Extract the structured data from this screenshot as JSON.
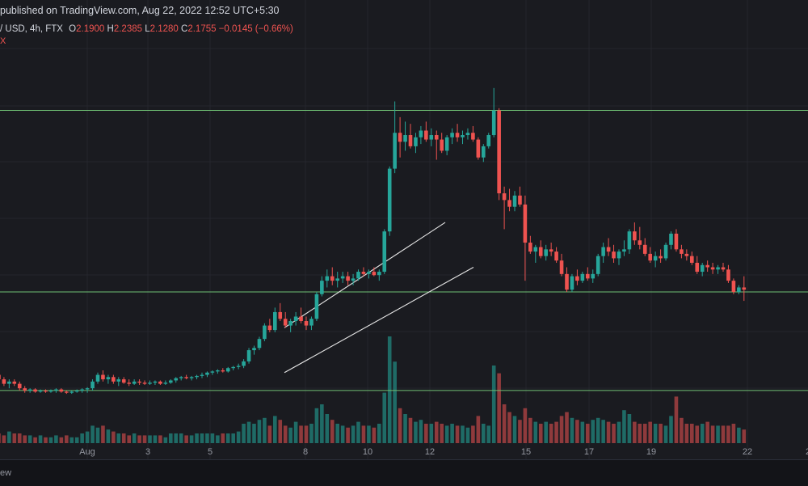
{
  "header": {
    "publish_line": "published on TradingView.com, Aug 22, 2022 12:52 UTC+5:30",
    "symbol_line": "/ USD, 4h, FTX",
    "open_label": "O",
    "open_value": "2.1900",
    "high_label": "H",
    "high_value": "2.2385",
    "low_label": "L",
    "low_value": "2.1280",
    "close_label": "C",
    "close_value": "2.1755",
    "change": "−0.0145 (−0.66%)",
    "row3": "X"
  },
  "footer": {
    "text": "ew"
  },
  "colors": {
    "background": "#1a1b20",
    "up": "#26a69a",
    "down": "#ef5350",
    "up_volume": "#1f6b66",
    "down_volume": "#8f3a3c",
    "level_line": "#6fbf73",
    "channel": "#e6e6e6",
    "grid": "#24262d",
    "tick_text": "#9598a1"
  },
  "chart_data": {
    "type": "candlestick",
    "title": "/ USD, 4h, FTX",
    "x_ticks": [
      "Aug",
      "3",
      "5",
      "8",
      "10",
      "12",
      "15",
      "17",
      "19",
      "22",
      "2"
    ],
    "horizontal_levels": [
      2.98,
      2.17,
      1.73
    ],
    "trend_channel": {
      "upper": [
        [
          "Aug 7",
          2.01
        ],
        [
          "Aug 12",
          2.48
        ]
      ],
      "lower": [
        [
          "Aug 7",
          1.81
        ],
        [
          "Aug 13",
          2.28
        ]
      ]
    },
    "ohlc": [
      [
        1.79,
        1.82,
        1.76,
        1.8
      ],
      [
        1.8,
        1.82,
        1.77,
        1.78
      ],
      [
        1.78,
        1.79,
        1.75,
        1.76
      ],
      [
        1.76,
        1.78,
        1.74,
        1.77
      ],
      [
        1.77,
        1.78,
        1.75,
        1.76
      ],
      [
        1.76,
        1.77,
        1.73,
        1.74
      ],
      [
        1.74,
        1.75,
        1.72,
        1.73
      ],
      [
        1.73,
        1.74,
        1.72,
        1.735
      ],
      [
        1.735,
        1.74,
        1.72,
        1.725
      ],
      [
        1.725,
        1.735,
        1.72,
        1.73
      ],
      [
        1.73,
        1.735,
        1.72,
        1.725
      ],
      [
        1.725,
        1.735,
        1.72,
        1.73
      ],
      [
        1.73,
        1.74,
        1.72,
        1.735
      ],
      [
        1.735,
        1.74,
        1.72,
        1.725
      ],
      [
        1.725,
        1.73,
        1.715,
        1.72
      ],
      [
        1.72,
        1.73,
        1.715,
        1.725
      ],
      [
        1.725,
        1.735,
        1.72,
        1.73
      ],
      [
        1.73,
        1.74,
        1.72,
        1.735
      ],
      [
        1.735,
        1.745,
        1.72,
        1.74
      ],
      [
        1.74,
        1.78,
        1.73,
        1.77
      ],
      [
        1.77,
        1.81,
        1.76,
        1.8
      ],
      [
        1.8,
        1.82,
        1.77,
        1.78
      ],
      [
        1.78,
        1.8,
        1.76,
        1.79
      ],
      [
        1.79,
        1.8,
        1.76,
        1.77
      ],
      [
        1.77,
        1.79,
        1.75,
        1.78
      ],
      [
        1.78,
        1.79,
        1.76,
        1.765
      ],
      [
        1.765,
        1.78,
        1.75,
        1.76
      ],
      [
        1.76,
        1.78,
        1.755,
        1.77
      ],
      [
        1.77,
        1.78,
        1.755,
        1.765
      ],
      [
        1.765,
        1.775,
        1.755,
        1.76
      ],
      [
        1.76,
        1.775,
        1.755,
        1.765
      ],
      [
        1.765,
        1.775,
        1.755,
        1.77
      ],
      [
        1.77,
        1.775,
        1.755,
        1.76
      ],
      [
        1.76,
        1.775,
        1.755,
        1.765
      ],
      [
        1.765,
        1.78,
        1.76,
        1.775
      ],
      [
        1.775,
        1.79,
        1.765,
        1.785
      ],
      [
        1.785,
        1.795,
        1.775,
        1.79
      ],
      [
        1.79,
        1.8,
        1.78,
        1.785
      ],
      [
        1.785,
        1.795,
        1.775,
        1.79
      ],
      [
        1.79,
        1.8,
        1.78,
        1.795
      ],
      [
        1.795,
        1.81,
        1.785,
        1.8
      ],
      [
        1.8,
        1.815,
        1.79,
        1.81
      ],
      [
        1.81,
        1.82,
        1.8,
        1.815
      ],
      [
        1.815,
        1.825,
        1.805,
        1.82
      ],
      [
        1.82,
        1.83,
        1.81,
        1.815
      ],
      [
        1.815,
        1.835,
        1.81,
        1.83
      ],
      [
        1.83,
        1.84,
        1.82,
        1.835
      ],
      [
        1.835,
        1.85,
        1.825,
        1.84
      ],
      [
        1.84,
        1.87,
        1.83,
        1.86
      ],
      [
        1.86,
        1.92,
        1.85,
        1.91
      ],
      [
        1.91,
        1.93,
        1.89,
        1.92
      ],
      [
        1.92,
        1.97,
        1.91,
        1.96
      ],
      [
        1.96,
        2.03,
        1.95,
        2.02
      ],
      [
        2.02,
        2.05,
        1.99,
        2.0
      ],
      [
        2.0,
        2.1,
        1.99,
        2.08
      ],
      [
        2.08,
        2.12,
        2.04,
        2.05
      ],
      [
        2.05,
        2.08,
        2.01,
        2.02
      ],
      [
        2.02,
        2.05,
        1.99,
        2.04
      ],
      [
        2.04,
        2.08,
        2.02,
        2.06
      ],
      [
        2.06,
        2.1,
        2.03,
        2.04
      ],
      [
        2.04,
        2.06,
        2.0,
        2.02
      ],
      [
        2.02,
        2.06,
        2.0,
        2.05
      ],
      [
        2.05,
        2.17,
        2.04,
        2.16
      ],
      [
        2.16,
        2.24,
        2.15,
        2.22
      ],
      [
        2.22,
        2.27,
        2.19,
        2.24
      ],
      [
        2.24,
        2.28,
        2.2,
        2.22
      ],
      [
        2.22,
        2.26,
        2.19,
        2.23
      ],
      [
        2.23,
        2.26,
        2.21,
        2.24
      ],
      [
        2.24,
        2.26,
        2.2,
        2.22
      ],
      [
        2.22,
        2.25,
        2.2,
        2.23
      ],
      [
        2.23,
        2.27,
        2.22,
        2.26
      ],
      [
        2.26,
        2.28,
        2.24,
        2.25
      ],
      [
        2.25,
        2.27,
        2.23,
        2.26
      ],
      [
        2.26,
        2.28,
        2.24,
        2.245
      ],
      [
        2.245,
        2.27,
        2.22,
        2.26
      ],
      [
        2.26,
        2.45,
        2.25,
        2.44
      ],
      [
        2.44,
        2.73,
        2.42,
        2.72
      ],
      [
        2.72,
        3.02,
        2.7,
        2.88
      ],
      [
        2.88,
        2.95,
        2.77,
        2.84
      ],
      [
        2.84,
        2.93,
        2.8,
        2.87
      ],
      [
        2.87,
        2.92,
        2.81,
        2.82
      ],
      [
        2.82,
        2.88,
        2.79,
        2.86
      ],
      [
        2.86,
        2.91,
        2.83,
        2.89
      ],
      [
        2.89,
        2.93,
        2.84,
        2.85
      ],
      [
        2.85,
        2.9,
        2.82,
        2.87
      ],
      [
        2.87,
        2.89,
        2.76,
        2.85
      ],
      [
        2.85,
        2.88,
        2.79,
        2.8
      ],
      [
        2.8,
        2.87,
        2.78,
        2.86
      ],
      [
        2.86,
        2.9,
        2.83,
        2.88
      ],
      [
        2.88,
        2.92,
        2.84,
        2.86
      ],
      [
        2.86,
        2.89,
        2.83,
        2.87
      ],
      [
        2.87,
        2.9,
        2.85,
        2.88
      ],
      [
        2.88,
        2.91,
        2.84,
        2.85
      ],
      [
        2.85,
        2.86,
        2.76,
        2.77
      ],
      [
        2.77,
        2.83,
        2.75,
        2.82
      ],
      [
        2.82,
        2.88,
        2.81,
        2.87
      ],
      [
        2.87,
        3.08,
        2.86,
        2.98
      ],
      [
        2.98,
        2.99,
        2.58,
        2.61
      ],
      [
        2.61,
        2.64,
        2.45,
        2.58
      ],
      [
        2.58,
        2.63,
        2.53,
        2.55
      ],
      [
        2.55,
        2.62,
        2.53,
        2.6
      ],
      [
        2.6,
        2.64,
        2.55,
        2.56
      ],
      [
        2.56,
        2.6,
        2.22,
        2.39
      ],
      [
        2.39,
        2.42,
        2.34,
        2.35
      ],
      [
        2.35,
        2.38,
        2.3,
        2.37
      ],
      [
        2.37,
        2.4,
        2.32,
        2.33
      ],
      [
        2.33,
        2.38,
        2.31,
        2.36
      ],
      [
        2.36,
        2.39,
        2.33,
        2.35
      ],
      [
        2.35,
        2.37,
        2.3,
        2.31
      ],
      [
        2.31,
        2.34,
        2.24,
        2.25
      ],
      [
        2.25,
        2.28,
        2.17,
        2.18
      ],
      [
        2.18,
        2.25,
        2.17,
        2.24
      ],
      [
        2.24,
        2.27,
        2.2,
        2.22
      ],
      [
        2.22,
        2.26,
        2.21,
        2.25
      ],
      [
        2.25,
        2.28,
        2.22,
        2.23
      ],
      [
        2.23,
        2.27,
        2.21,
        2.25
      ],
      [
        2.25,
        2.34,
        2.24,
        2.33
      ],
      [
        2.33,
        2.39,
        2.3,
        2.37
      ],
      [
        2.37,
        2.41,
        2.33,
        2.35
      ],
      [
        2.35,
        2.38,
        2.3,
        2.32
      ],
      [
        2.32,
        2.36,
        2.29,
        2.35
      ],
      [
        2.35,
        2.4,
        2.33,
        2.36
      ],
      [
        2.36,
        2.45,
        2.34,
        2.44
      ],
      [
        2.44,
        2.48,
        2.38,
        2.4
      ],
      [
        2.4,
        2.46,
        2.36,
        2.38
      ],
      [
        2.38,
        2.41,
        2.33,
        2.34
      ],
      [
        2.34,
        2.37,
        2.3,
        2.31
      ],
      [
        2.31,
        2.35,
        2.28,
        2.33
      ],
      [
        2.33,
        2.36,
        2.3,
        2.32
      ],
      [
        2.32,
        2.39,
        2.31,
        2.38
      ],
      [
        2.38,
        2.44,
        2.36,
        2.43
      ],
      [
        2.43,
        2.45,
        2.35,
        2.36
      ],
      [
        2.36,
        2.38,
        2.32,
        2.34
      ],
      [
        2.34,
        2.36,
        2.31,
        2.33
      ],
      [
        2.33,
        2.35,
        2.29,
        2.3
      ],
      [
        2.3,
        2.33,
        2.25,
        2.26
      ],
      [
        2.26,
        2.3,
        2.24,
        2.29
      ],
      [
        2.29,
        2.31,
        2.26,
        2.28
      ],
      [
        2.28,
        2.3,
        2.25,
        2.27
      ],
      [
        2.27,
        2.29,
        2.25,
        2.28
      ],
      [
        2.28,
        2.3,
        2.26,
        2.27
      ],
      [
        2.27,
        2.29,
        2.21,
        2.22
      ],
      [
        2.22,
        2.23,
        2.16,
        2.17
      ],
      [
        2.17,
        2.2,
        2.16,
        2.19
      ],
      [
        2.19,
        2.24,
        2.13,
        2.18
      ]
    ],
    "volume": [
      0.6,
      0.5,
      0.4,
      0.6,
      0.5,
      0.5,
      0.4,
      0.4,
      0.3,
      0.4,
      0.3,
      0.3,
      0.4,
      0.3,
      0.4,
      0.3,
      0.3,
      0.5,
      0.6,
      0.9,
      0.8,
      0.9,
      0.7,
      0.6,
      0.5,
      0.5,
      0.4,
      0.5,
      0.4,
      0.4,
      0.4,
      0.4,
      0.4,
      0.3,
      0.5,
      0.5,
      0.5,
      0.4,
      0.4,
      0.5,
      0.5,
      0.5,
      0.5,
      0.4,
      0.5,
      0.5,
      0.5,
      0.6,
      1.0,
      1.1,
      1.0,
      1.2,
      1.3,
      0.9,
      1.4,
      1.2,
      0.9,
      0.8,
      1.1,
      0.9,
      0.9,
      1.0,
      1.8,
      2.0,
      1.5,
      1.2,
      1.0,
      0.9,
      0.8,
      0.9,
      1.1,
      0.9,
      0.9,
      0.8,
      1.0,
      2.6,
      5.5,
      4.2,
      1.8,
      1.5,
      1.3,
      1.1,
      1.2,
      1.0,
      1.0,
      1.1,
      1.0,
      0.9,
      1.0,
      0.9,
      0.9,
      0.8,
      0.9,
      1.4,
      1.0,
      0.9,
      4.0,
      3.6,
      2.0,
      1.6,
      1.4,
      1.2,
      1.8,
      1.3,
      1.1,
      1.0,
      1.1,
      1.0,
      1.1,
      1.4,
      1.6,
      1.3,
      1.2,
      1.1,
      1.0,
      1.2,
      1.3,
      1.2,
      1.1,
      1.0,
      1.1,
      1.7,
      1.5,
      1.1,
      1.0,
      1.0,
      1.1,
      1.0,
      1.0,
      0.9,
      1.4,
      2.4,
      1.3,
      1.0,
      1.0,
      0.9,
      1.0,
      1.1,
      0.9,
      0.9,
      0.9,
      0.9,
      1.0,
      0.8,
      0.7
    ]
  }
}
